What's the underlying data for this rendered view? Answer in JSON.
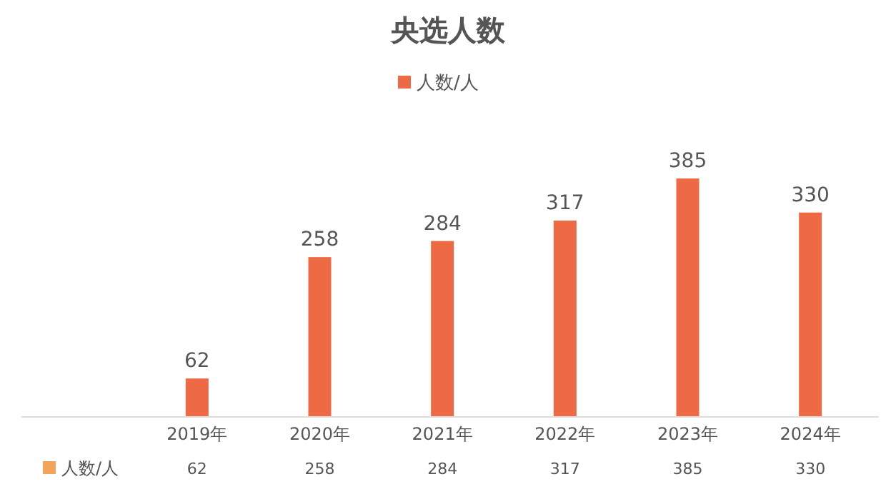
{
  "chart_data": {
    "type": "bar",
    "title": "央选人数",
    "categories": [
      "2019年",
      "2020年",
      "2021年",
      "2022年",
      "2023年",
      "2024年"
    ],
    "series": [
      {
        "name": "人数/人",
        "color": "#ee6a45",
        "values": [
          62,
          258,
          284,
          317,
          385,
          330
        ],
        "value_labels": [
          "62",
          "258",
          "284",
          "317",
          "385",
          "330"
        ]
      }
    ],
    "annotations": [
      "62",
      "258",
      "284",
      "317",
      "385",
      "330"
    ],
    "data_labels": true,
    "legend": "top"
  }
}
